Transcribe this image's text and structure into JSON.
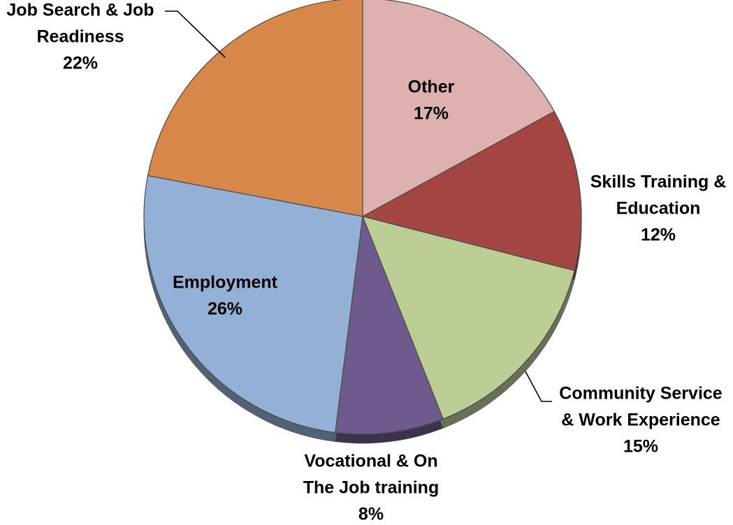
{
  "chart_data": {
    "type": "pie",
    "title": "",
    "start": "12 o'clock",
    "direction": "clockwise",
    "slices": [
      {
        "name": "Other",
        "value": 17,
        "label_lines": [
          "Other",
          "17%"
        ],
        "color": "#DDB1B0"
      },
      {
        "name": "Skills Training & Education",
        "value": 12,
        "label_lines": [
          "Skills Training &",
          "Education",
          "12%"
        ],
        "color": "#A24543"
      },
      {
        "name": "Community Service & Work Experience",
        "value": 15,
        "label_lines": [
          "Community Service",
          "& Work Experience",
          "15%"
        ],
        "color": "#BCCD96"
      },
      {
        "name": "Vocational & On The Job training",
        "value": 8,
        "label_lines": [
          "Vocational & On",
          "The Job training",
          "8%"
        ],
        "color": "#6E5A8C"
      },
      {
        "name": "Employment",
        "value": 26,
        "label_lines": [
          "Employment",
          "26%"
        ],
        "color": "#94B0D6"
      },
      {
        "name": "Job Search & Job Readiness",
        "value": 22,
        "label_lines": [
          "Job Search & Job",
          "Readiness",
          "22%"
        ],
        "color": "#D8874A"
      }
    ]
  }
}
